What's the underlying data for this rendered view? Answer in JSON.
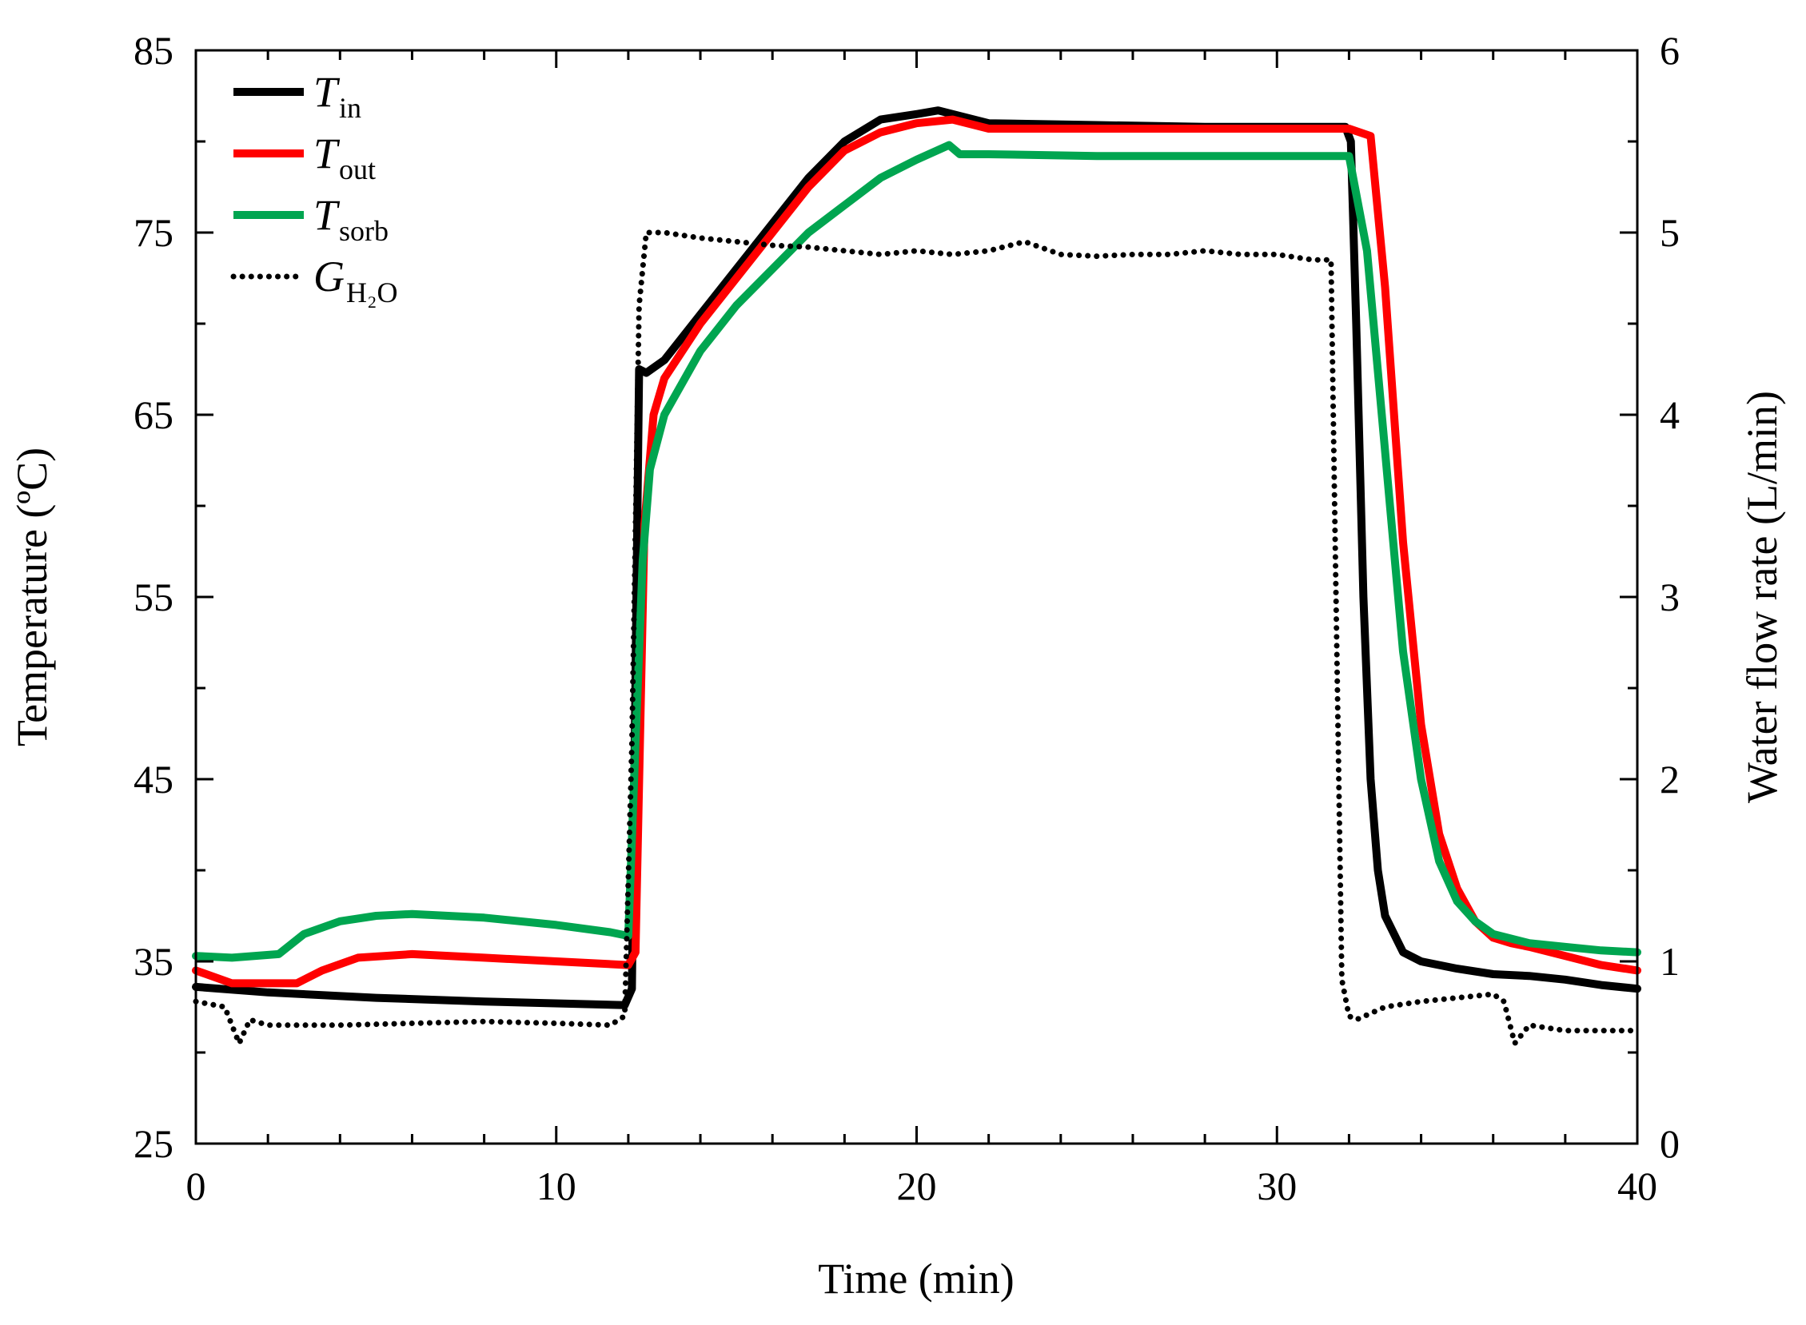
{
  "chart_data": {
    "type": "line",
    "xlabel": "Time (min)",
    "ylabel": "Temperature (ºC)",
    "y2label": "Water flow rate (L/min)",
    "xlim": [
      0,
      40
    ],
    "ylim": [
      25,
      85
    ],
    "y2lim": [
      0,
      6
    ],
    "xticks": [
      "0",
      "10",
      "20",
      "30",
      "40"
    ],
    "yticks": [
      "25",
      "35",
      "45",
      "55",
      "65",
      "75",
      "85"
    ],
    "y2ticks": [
      "0",
      "1",
      "2",
      "3",
      "4",
      "5",
      "6"
    ],
    "grid": false,
    "legend_position": "top-left",
    "series": [
      {
        "name": "T_in",
        "label_main": "T",
        "label_sub": "in",
        "color": "#000000",
        "axis": "left",
        "style": "solid",
        "x": [
          0,
          2,
          5,
          8,
          11.9,
          12.1,
          12.3,
          12.5,
          13,
          14,
          15,
          16,
          17,
          18,
          19,
          20,
          20.6,
          21.2,
          22,
          25,
          28,
          31.9,
          32.05,
          32.2,
          32.4,
          32.6,
          32.8,
          33.0,
          33.5,
          34,
          35,
          36,
          37,
          38,
          39,
          40
        ],
        "y": [
          33.6,
          33.3,
          33.0,
          32.8,
          32.6,
          33.5,
          67.5,
          67.3,
          68.0,
          70.5,
          73.0,
          75.5,
          78.0,
          80.0,
          81.2,
          81.5,
          81.7,
          81.4,
          81.0,
          80.9,
          80.8,
          80.8,
          80.0,
          70.0,
          55.0,
          45.0,
          40.0,
          37.5,
          35.5,
          35.0,
          34.6,
          34.3,
          34.2,
          34.0,
          33.7,
          33.5
        ]
      },
      {
        "name": "T_out",
        "label_main": "T",
        "label_sub": "out",
        "color": "#ff0000",
        "axis": "left",
        "style": "solid",
        "x": [
          0,
          1,
          2.8,
          3.5,
          4.5,
          6,
          8,
          10,
          12.0,
          12.2,
          12.45,
          12.7,
          13,
          14,
          15,
          16,
          17,
          18,
          19,
          20,
          21,
          22,
          25,
          28,
          31,
          32,
          32.6,
          33.0,
          33.5,
          34,
          34.5,
          35,
          35.5,
          36,
          36.5,
          37,
          38,
          39,
          40
        ],
        "y": [
          34.5,
          33.8,
          33.8,
          34.5,
          35.2,
          35.4,
          35.2,
          35.0,
          34.8,
          35.5,
          59.0,
          65.0,
          67.0,
          70.0,
          72.5,
          75.0,
          77.5,
          79.5,
          80.5,
          81.0,
          81.2,
          80.7,
          80.7,
          80.7,
          80.7,
          80.7,
          80.3,
          72.0,
          58.0,
          48.0,
          42.0,
          39.0,
          37.2,
          36.3,
          36.0,
          35.8,
          35.3,
          34.8,
          34.5
        ]
      },
      {
        "name": "T_sorb",
        "label_main": "T",
        "label_sub": "sorb",
        "color": "#00a550",
        "axis": "left",
        "style": "solid",
        "x": [
          0,
          1,
          2.3,
          3,
          4,
          5,
          6,
          8,
          10,
          11.5,
          12.0,
          12.2,
          12.4,
          12.6,
          13,
          14,
          15,
          16,
          17,
          18,
          19,
          20,
          20.9,
          21.2,
          22,
          25,
          28,
          31,
          32,
          32.5,
          33,
          33.5,
          34,
          34.5,
          35,
          35.5,
          36,
          37,
          38,
          39,
          40
        ],
        "y": [
          35.3,
          35.2,
          35.4,
          36.5,
          37.2,
          37.5,
          37.6,
          37.4,
          37.0,
          36.6,
          36.4,
          47.0,
          57.0,
          62.0,
          65.0,
          68.5,
          71.0,
          73.0,
          75.0,
          76.5,
          78.0,
          79.0,
          79.8,
          79.3,
          79.3,
          79.2,
          79.2,
          79.2,
          79.2,
          74.0,
          63.0,
          52.0,
          45.0,
          40.5,
          38.3,
          37.2,
          36.5,
          36.0,
          35.8,
          35.6,
          35.5
        ]
      },
      {
        "name": "G_H2O",
        "label_main": "G",
        "label_sub": "H₂O",
        "color": "#000000",
        "axis": "right",
        "style": "dotted",
        "x": [
          0,
          0.8,
          1.2,
          1.5,
          2,
          4,
          6,
          8,
          10,
          11.5,
          11.9,
          12.1,
          12.3,
          12.5,
          13,
          14,
          15,
          16,
          17,
          18,
          19,
          20,
          21,
          22,
          23,
          24,
          25,
          26,
          27,
          28,
          29,
          30,
          31,
          31.5,
          31.6,
          31.8,
          32.0,
          32.2,
          33,
          34,
          35,
          36,
          36.3,
          36.6,
          37,
          38,
          39,
          40
        ],
        "y": [
          0.78,
          0.75,
          0.55,
          0.68,
          0.65,
          0.65,
          0.66,
          0.67,
          0.66,
          0.65,
          0.7,
          2.2,
          4.6,
          5.0,
          5.0,
          4.97,
          4.95,
          4.93,
          4.92,
          4.9,
          4.88,
          4.9,
          4.88,
          4.9,
          4.95,
          4.88,
          4.87,
          4.88,
          4.88,
          4.9,
          4.88,
          4.88,
          4.85,
          4.85,
          3.5,
          0.9,
          0.7,
          0.68,
          0.75,
          0.78,
          0.8,
          0.82,
          0.78,
          0.55,
          0.65,
          0.62,
          0.62,
          0.62
        ]
      }
    ]
  }
}
